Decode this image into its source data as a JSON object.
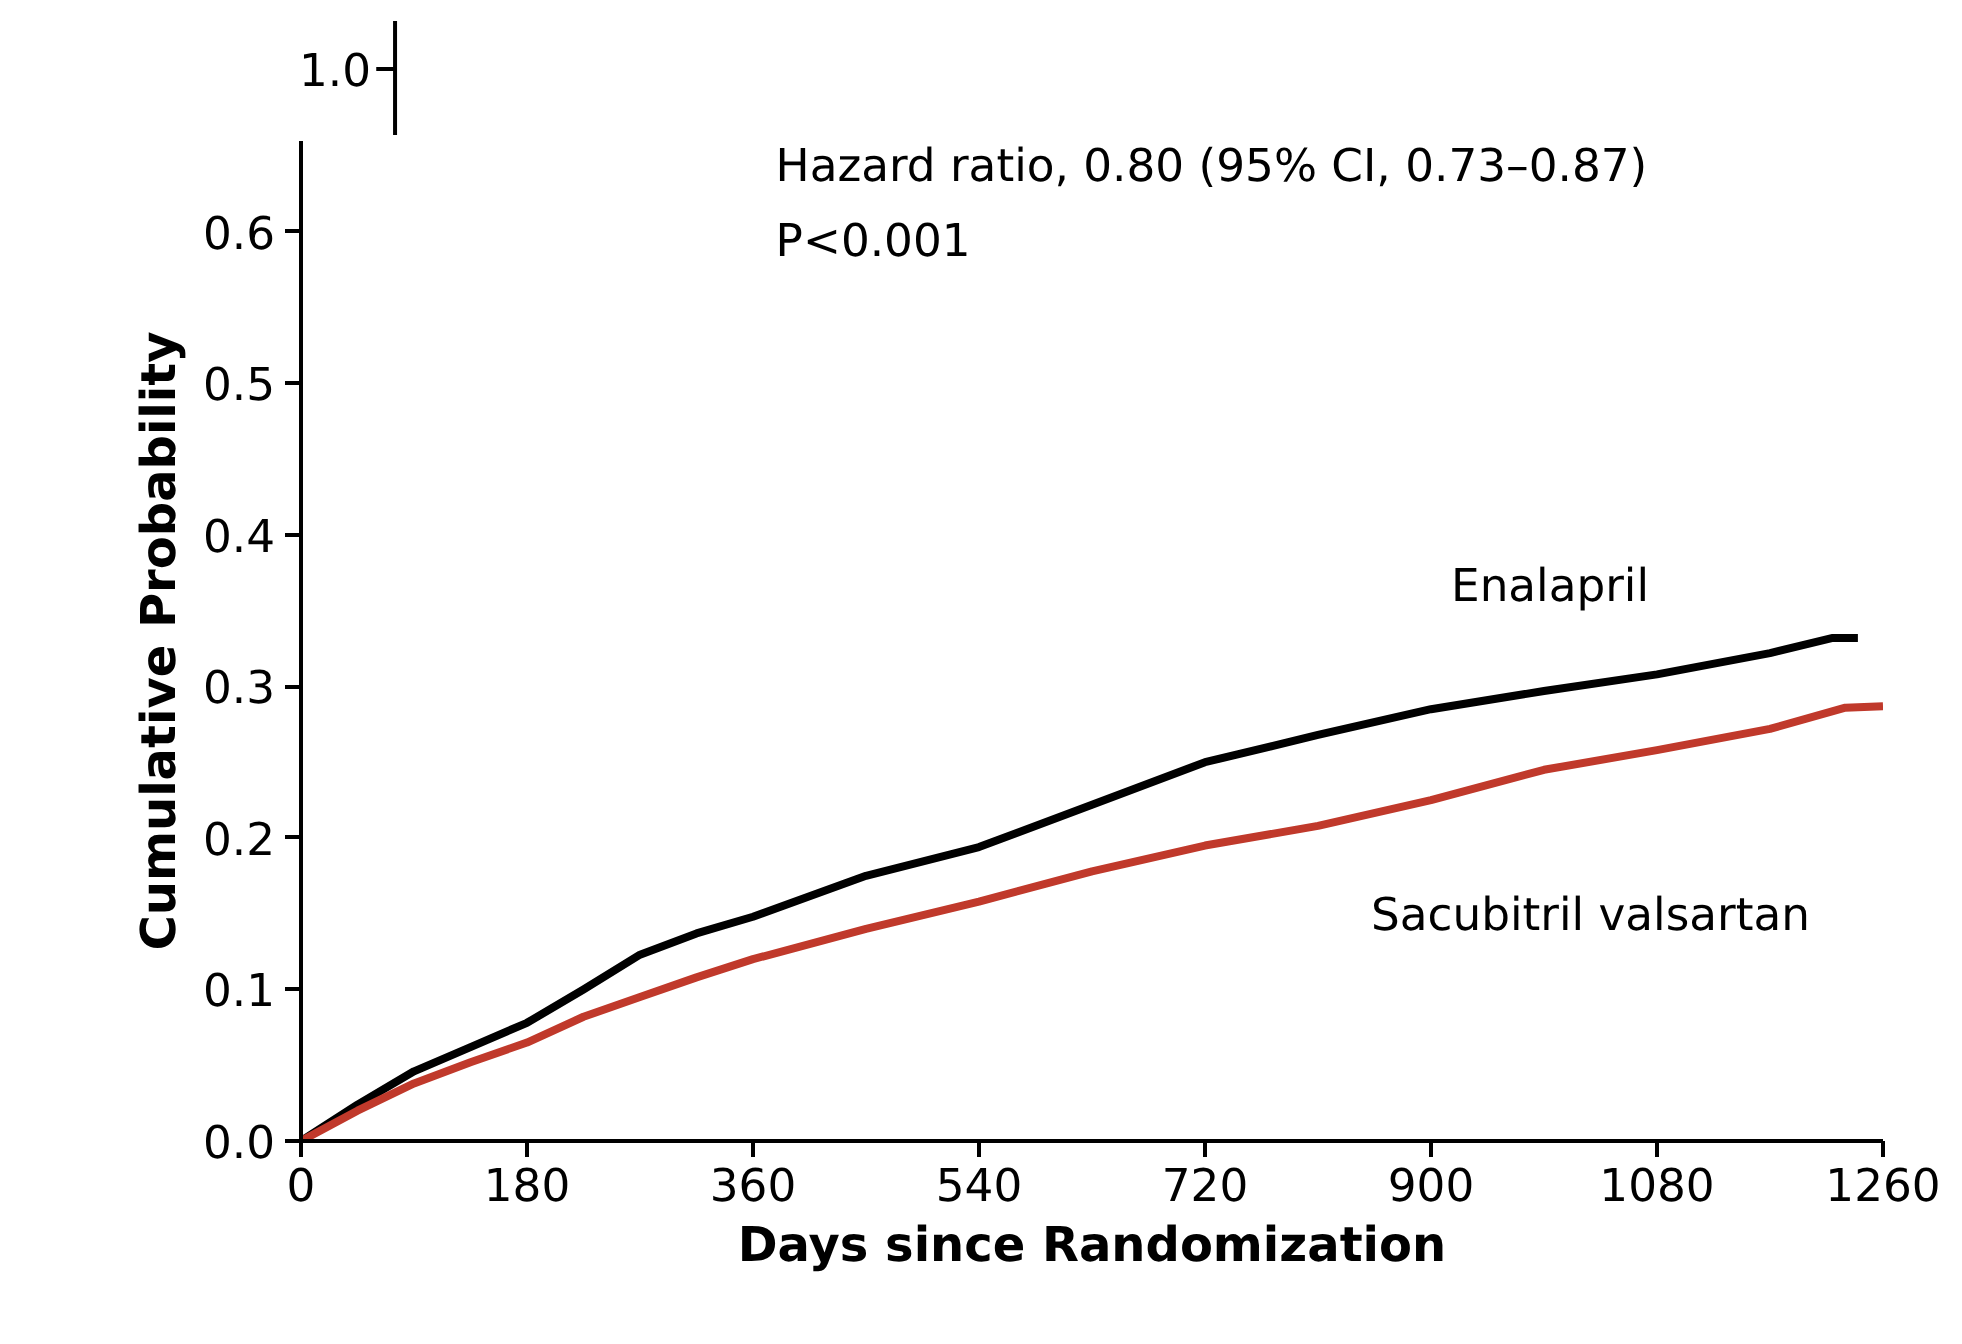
{
  "chart_data": [
    {
      "type": "other",
      "annotations": [
        "1.0"
      ]
    },
    {
      "type": "line",
      "xlabel": "Days since Randomization",
      "ylabel": "Cumulative Probability",
      "annotations": [
        "Hazard ratio, 0.80 (95% CI, 0.73–0.87)",
        "P<0.001"
      ],
      "xlim": [
        0,
        1260
      ],
      "xticks": [
        0,
        180,
        360,
        540,
        720,
        900,
        1080,
        1260
      ],
      "ylim": [
        0,
        0.66
      ],
      "yticks": [
        {
          "value": 0,
          "label": "0.0"
        },
        0.1,
        0.2,
        0.3,
        0.4,
        0.5,
        0.6
      ],
      "grid": false,
      "marker": "none",
      "line_style": "solid",
      "series": [
        {
          "name": "Enalapril",
          "color": "#000000",
          "x": [
            0,
            45,
            90,
            135,
            180,
            225,
            270,
            315,
            360,
            450,
            540,
            630,
            720,
            810,
            900,
            990,
            1080,
            1170,
            1220,
            1240
          ],
          "values": [
            0,
            0.024,
            0.046,
            0.062,
            0.078,
            0.1,
            0.123,
            0.137,
            0.148,
            0.175,
            0.194,
            0.222,
            0.25,
            0.268,
            0.285,
            0.297,
            0.308,
            0.322,
            0.332,
            0.332
          ]
        },
        {
          "name": "Sacubitril valsartan",
          "color": "#c0392b",
          "x": [
            0,
            45,
            90,
            135,
            180,
            225,
            270,
            315,
            360,
            450,
            540,
            630,
            720,
            810,
            900,
            990,
            1080,
            1170,
            1230,
            1260
          ],
          "values": [
            0,
            0.02,
            0.038,
            0.052,
            0.065,
            0.082,
            0.095,
            0.108,
            0.12,
            0.14,
            0.158,
            0.178,
            0.195,
            0.208,
            0.225,
            0.245,
            0.258,
            0.272,
            0.286,
            0.287
          ]
        }
      ]
    }
  ]
}
